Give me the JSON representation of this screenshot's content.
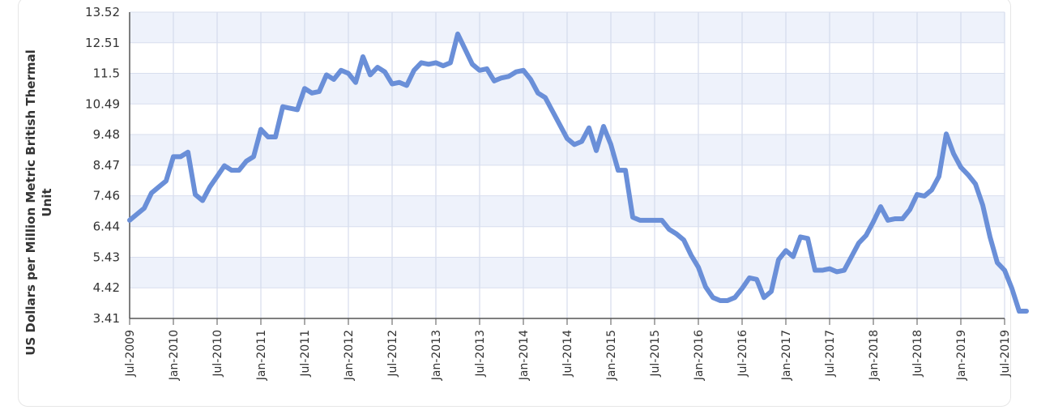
{
  "chart_data": {
    "type": "line",
    "title": "",
    "ylabel_lines": [
      "US Dollars per Million Metric British Thermal",
      "Unit"
    ],
    "xlabel": "",
    "ylim": [
      3.41,
      13.52
    ],
    "y_ticks": [
      "13.52",
      "12.51",
      "11.5",
      "10.49",
      "9.48",
      "8.47",
      "7.46",
      "6.44",
      "5.43",
      "4.42",
      "3.41"
    ],
    "x_ticks": [
      {
        "label": "Jul-2009",
        "m": 0
      },
      {
        "label": "Jan-2010",
        "m": 6
      },
      {
        "label": "Jul-2010",
        "m": 12
      },
      {
        "label": "Jan-2011",
        "m": 18
      },
      {
        "label": "Jul-2011",
        "m": 24
      },
      {
        "label": "Jan-2012",
        "m": 30
      },
      {
        "label": "Jul-2012",
        "m": 36
      },
      {
        "label": "Jan-2013",
        "m": 42
      },
      {
        "label": "Jul-2013",
        "m": 48
      },
      {
        "label": "Jan-2014",
        "m": 54
      },
      {
        "label": "Jul-2014",
        "m": 60
      },
      {
        "label": "Jan-2015",
        "m": 66
      },
      {
        "label": "Jul-2015",
        "m": 72
      },
      {
        "label": "Jan-2016",
        "m": 78
      },
      {
        "label": "Jul-2016",
        "m": 84
      },
      {
        "label": "Jan-2017",
        "m": 90
      },
      {
        "label": "Jul-2017",
        "m": 96
      },
      {
        "label": "Jan-2018",
        "m": 102
      },
      {
        "label": "Jul-2018",
        "m": 108
      },
      {
        "label": "Jan-2019",
        "m": 114
      },
      {
        "label": "Jul-2019",
        "m": 120
      }
    ],
    "x_range_months": [
      0,
      120
    ],
    "grid": true,
    "line_color": "#6a8fd8",
    "series": [
      {
        "values": [
          6.65,
          6.85,
          7.05,
          7.55,
          7.75,
          7.95,
          8.75,
          8.75,
          8.9,
          7.5,
          7.3,
          7.75,
          8.1,
          8.45,
          8.3,
          8.3,
          8.6,
          8.75,
          9.65,
          9.4,
          9.4,
          10.4,
          10.35,
          10.3,
          11.0,
          10.85,
          10.9,
          11.45,
          11.3,
          11.6,
          11.5,
          11.2,
          12.05,
          11.45,
          11.7,
          11.55,
          11.15,
          11.2,
          11.1,
          11.6,
          11.85,
          11.8,
          11.85,
          11.75,
          11.85,
          12.8,
          12.3,
          11.8,
          11.6,
          11.65,
          11.25,
          11.35,
          11.4,
          11.55,
          11.6,
          11.3,
          10.85,
          10.7,
          10.25,
          9.8,
          9.35,
          9.15,
          9.25,
          9.7,
          8.95,
          9.75,
          9.15,
          8.3,
          8.3,
          6.75,
          6.65,
          6.65,
          6.65,
          6.65,
          6.35,
          6.2,
          6.0,
          5.5,
          5.1,
          4.45,
          4.1,
          4.0,
          4.0,
          4.1,
          4.4,
          4.75,
          4.7,
          4.1,
          4.3,
          5.35,
          5.65,
          5.45,
          6.1,
          6.05,
          5.0,
          5.0,
          5.05,
          4.95,
          5.0,
          5.45,
          5.9,
          6.15,
          6.6,
          7.1,
          6.65,
          6.7,
          6.7,
          7.0,
          7.5,
          7.45,
          7.65,
          8.1,
          9.5,
          8.85,
          8.4,
          8.15,
          7.85,
          7.15,
          6.1,
          5.25,
          5.0,
          4.4,
          3.65,
          3.65
        ]
      }
    ]
  }
}
